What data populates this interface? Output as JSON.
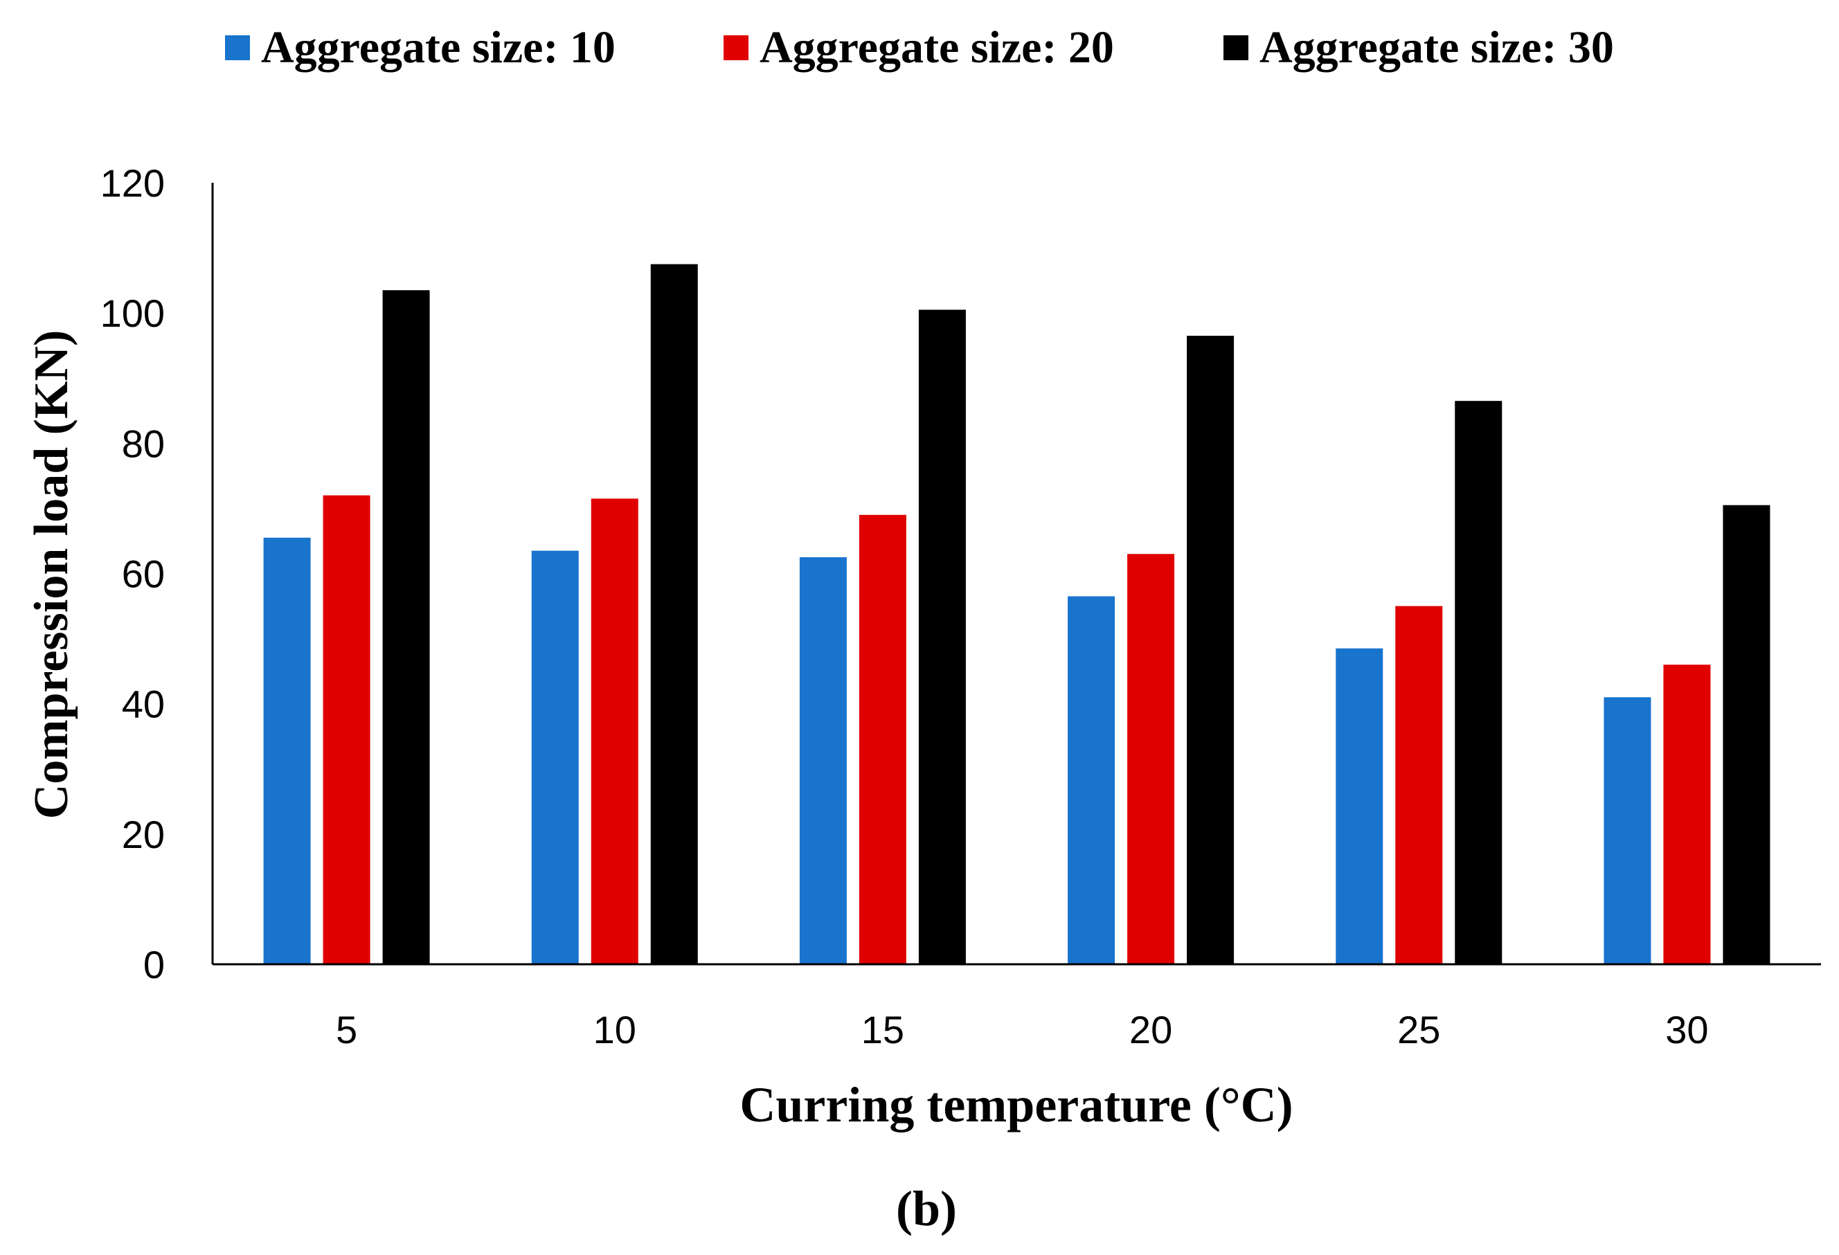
{
  "chart_data": {
    "type": "bar",
    "title": "",
    "xlabel": "Curring temperature (°C)",
    "ylabel": "Compression load (KN)",
    "categories": [
      "5",
      "10",
      "15",
      "20",
      "25",
      "30"
    ],
    "series": [
      {
        "name": "Aggregate size: 10",
        "color": "#1874CD",
        "values": [
          65.5,
          63.5,
          62.5,
          56.5,
          48.5,
          41
        ]
      },
      {
        "name": "Aggregate size: 20",
        "color": "#E00000",
        "values": [
          72,
          71.5,
          69,
          63,
          55,
          46
        ]
      },
      {
        "name": "Aggregate size: 30",
        "color": "#000000",
        "values": [
          103.5,
          107.5,
          100.5,
          96.5,
          86.5,
          70.5
        ]
      }
    ],
    "ylim": [
      0,
      120
    ],
    "yticks": [
      "0",
      "20",
      "40",
      "60",
      "80",
      "100",
      "120"
    ],
    "grid": false,
    "legend_position": "top",
    "panel_label": "(b)"
  }
}
